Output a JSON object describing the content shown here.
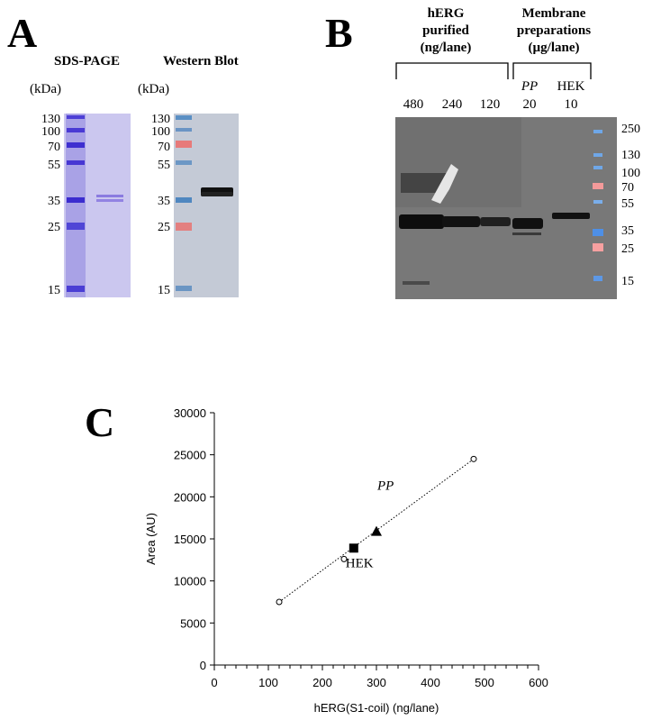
{
  "panel_a": {
    "letter": "A",
    "sds_title": "SDS-PAGE",
    "wb_title": "Western Blot",
    "kda_label": "(kDa)",
    "markers": [
      "130",
      "100",
      "70",
      "55",
      "35",
      "25",
      "15"
    ]
  },
  "panel_b": {
    "letter": "B",
    "group1_title": [
      "hERG",
      "purified",
      "(ng/lane)"
    ],
    "group2_title": [
      "Membrane",
      "preparations",
      "(µg/lane)"
    ],
    "lane_names": [
      "PP",
      "HEK"
    ],
    "lane_values": [
      "480",
      "240",
      "120",
      "20",
      "10"
    ],
    "markers": [
      "250",
      "130",
      "100",
      "70",
      "55",
      "35",
      "25",
      "15"
    ]
  },
  "panel_c": {
    "letter": "C",
    "chart_data": {
      "type": "scatter",
      "xlabel": "hERG(S1-coil) (ng/lane)",
      "ylabel": "Area (AU)",
      "xlim": [
        0,
        600
      ],
      "ylim": [
        0,
        30000
      ],
      "x_ticks": [
        0,
        100,
        200,
        300,
        400,
        500,
        600
      ],
      "y_ticks": [
        0,
        5000,
        10000,
        15000,
        20000,
        25000,
        30000
      ],
      "grid": false,
      "series": [
        {
          "marker": "open-circle",
          "x": [
            120,
            240,
            480
          ],
          "y": [
            7500,
            12600,
            24500
          ]
        },
        {
          "name": "HEK",
          "marker": "filled-square",
          "x": [
            258
          ],
          "y": [
            13900
          ]
        },
        {
          "name": "PP",
          "marker": "filled-triangle",
          "x": [
            300
          ],
          "y": [
            15900
          ]
        }
      ],
      "trendline": {
        "style": "dotted",
        "x": [
          120,
          480
        ],
        "y": [
          7500,
          24500
        ]
      }
    }
  }
}
